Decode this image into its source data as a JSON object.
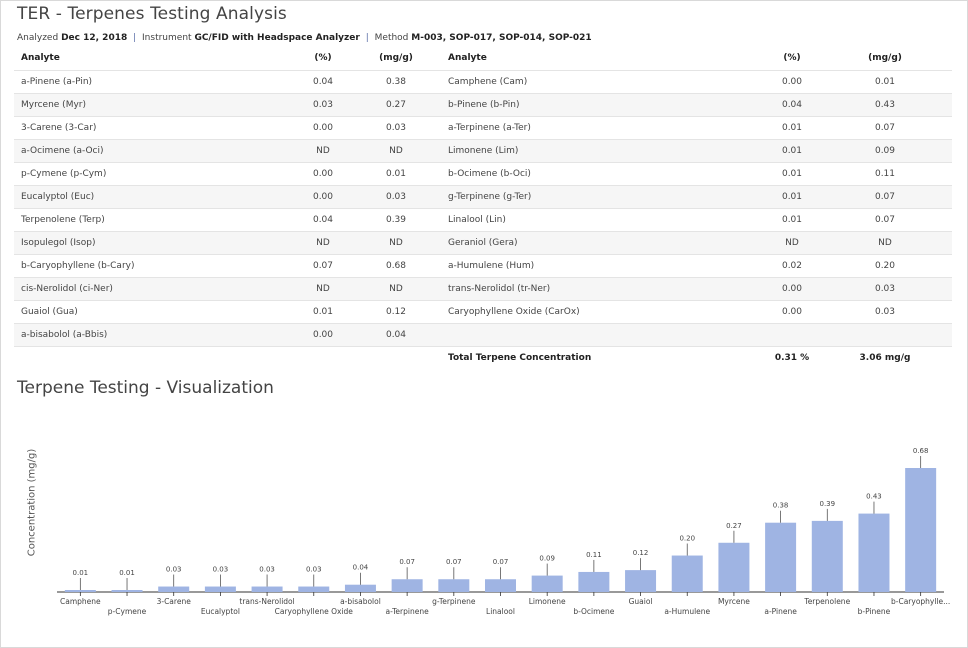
{
  "page": {
    "title": "TER - Terpenes Testing Analysis",
    "meta": {
      "analyzed_label": "Analyzed",
      "analyzed_value": "Dec 12, 2018",
      "instrument_label": "Instrument",
      "instrument_value": "GC/FID with Headspace Analyzer",
      "method_label": "Method",
      "method_value": "M-003, SOP-017, SOP-014, SOP-021",
      "separator": "|"
    },
    "viz_title": "Terpene Testing - Visualization"
  },
  "table": {
    "headers": {
      "analyte": "Analyte",
      "pct": "(%)",
      "mg": "(mg/g)"
    },
    "rows": [
      {
        "a1": "a-Pinene (a-Pin)",
        "p1": "0.04",
        "m1": "0.38",
        "a2": "Camphene (Cam)",
        "p2": "0.00",
        "m2": "0.01"
      },
      {
        "a1": "Myrcene (Myr)",
        "p1": "0.03",
        "m1": "0.27",
        "a2": "b-Pinene (b-Pin)",
        "p2": "0.04",
        "m2": "0.43"
      },
      {
        "a1": "3-Carene (3-Car)",
        "p1": "0.00",
        "m1": "0.03",
        "a2": "a-Terpinene (a-Ter)",
        "p2": "0.01",
        "m2": "0.07"
      },
      {
        "a1": "a-Ocimene (a-Oci)",
        "p1": "ND",
        "m1": "ND",
        "a2": "Limonene (Lim)",
        "p2": "0.01",
        "m2": "0.09"
      },
      {
        "a1": "p-Cymene (p-Cym)",
        "p1": "0.00",
        "m1": "0.01",
        "a2": "b-Ocimene (b-Oci)",
        "p2": "0.01",
        "m2": "0.11"
      },
      {
        "a1": "Eucalyptol (Euc)",
        "p1": "0.00",
        "m1": "0.03",
        "a2": "g-Terpinene (g-Ter)",
        "p2": "0.01",
        "m2": "0.07"
      },
      {
        "a1": "Terpenolene (Terp)",
        "p1": "0.04",
        "m1": "0.39",
        "a2": "Linalool (Lin)",
        "p2": "0.01",
        "m2": "0.07"
      },
      {
        "a1": "Isopulegol (Isop)",
        "p1": "ND",
        "m1": "ND",
        "a2": "Geraniol (Gera)",
        "p2": "ND",
        "m2": "ND"
      },
      {
        "a1": "b-Caryophyllene (b-Cary)",
        "p1": "0.07",
        "m1": "0.68",
        "a2": "a-Humulene (Hum)",
        "p2": "0.02",
        "m2": "0.20"
      },
      {
        "a1": "cis-Nerolidol (ci-Ner)",
        "p1": "ND",
        "m1": "ND",
        "a2": "trans-Nerolidol (tr-Ner)",
        "p2": "0.00",
        "m2": "0.03"
      },
      {
        "a1": "Guaiol (Gua)",
        "p1": "0.01",
        "m1": "0.12",
        "a2": "Caryophyllene Oxide (CarOx)",
        "p2": "0.00",
        "m2": "0.03"
      },
      {
        "a1": "a-bisabolol (a-Bbis)",
        "p1": "0.00",
        "m1": "0.04",
        "a2": "",
        "p2": "",
        "m2": ""
      }
    ],
    "total": {
      "label": "Total Terpene Concentration",
      "pct": "0.31 %",
      "mg": "3.06 mg/g"
    }
  },
  "chart_data": {
    "type": "bar",
    "ylabel": "Concentration (mg/g)",
    "bar_color": "#9fb4e3",
    "categories": [
      "Camphene",
      "p-Cymene",
      "3-Carene",
      "Eucalyptol",
      "trans-Nerolidol",
      "Caryophyllene Oxide",
      "a-bisabolol",
      "a-Terpinene",
      "g-Terpinene",
      "Linalool",
      "Limonene",
      "b-Ocimene",
      "Guaiol",
      "a-Humulene",
      "Myrcene",
      "a-Pinene",
      "Terpenolene",
      "b-Pinene",
      "b-Caryophylle..."
    ],
    "values": [
      0.01,
      0.01,
      0.03,
      0.03,
      0.03,
      0.03,
      0.04,
      0.07,
      0.07,
      0.07,
      0.09,
      0.11,
      0.12,
      0.2,
      0.27,
      0.38,
      0.39,
      0.43,
      0.68
    ],
    "value_labels": [
      "0.01",
      "0.01",
      "0.03",
      "0.03",
      "0.03",
      "0.03",
      "0.04",
      "0.07",
      "0.07",
      "0.07",
      "0.09",
      "0.11",
      "0.12",
      "0.20",
      "0.27",
      "0.38",
      "0.39",
      "0.43",
      "0.68"
    ],
    "ylim": [
      0,
      0.68
    ],
    "grid": false,
    "label_rows": "alternating"
  }
}
